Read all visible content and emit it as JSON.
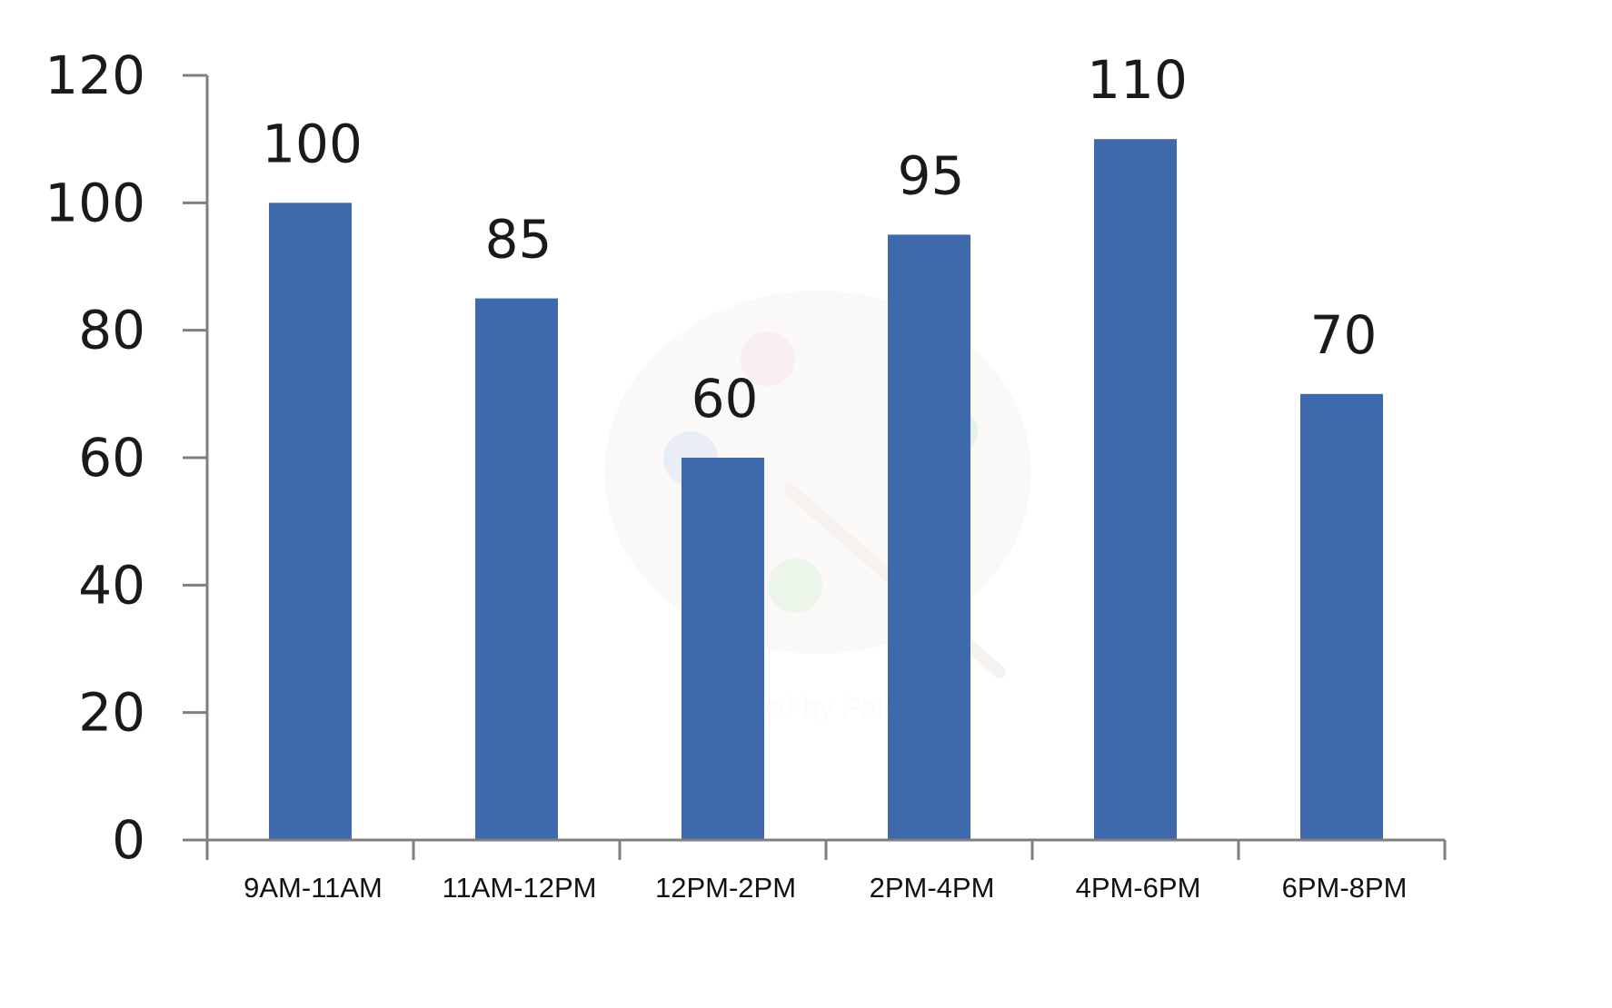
{
  "chart_data": {
    "type": "bar",
    "title": "",
    "xlabel": "",
    "ylabel": "",
    "categories": [
      "9AM-11AM",
      "11AM-12PM",
      "12PM-2PM",
      "2PM-4PM",
      "4PM-6PM",
      "6PM-8PM"
    ],
    "values": [
      100,
      85,
      60,
      95,
      110,
      70
    ],
    "data_labels": [
      "100",
      "85",
      "60",
      "95",
      "110",
      "70"
    ],
    "ylim": [
      0,
      120
    ],
    "yticks": [
      0,
      20,
      40,
      60,
      80,
      100,
      120
    ],
    "ytick_labels": [
      "0",
      "20",
      "40",
      "60",
      "80",
      "100",
      "120"
    ],
    "grid": false,
    "legend": "none",
    "bar_color": "#3e6aad",
    "axis_color": "#7f7f7f"
  },
  "watermark": {
    "text": "Created by Paint S",
    "icon": "palette-icon"
  }
}
